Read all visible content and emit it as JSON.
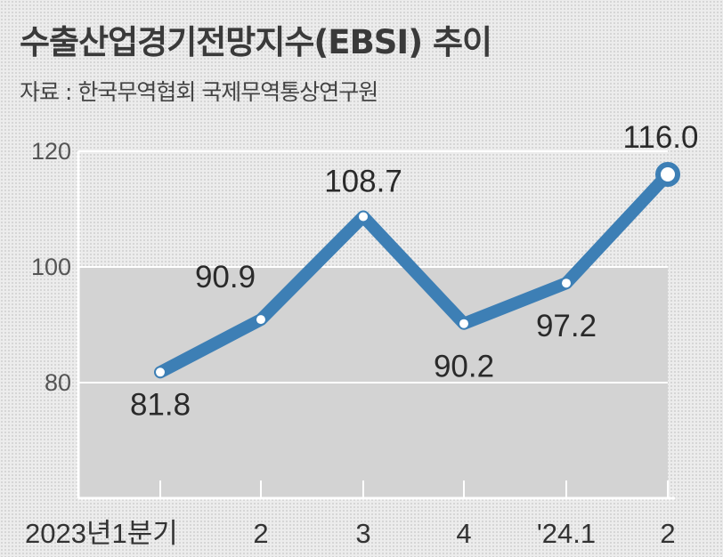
{
  "chart_data": {
    "type": "line",
    "title": "수출산업경기전망지수(EBSI) 추이",
    "subtitle": "자료 : 한국무역협회 국제무역통상연구원",
    "categories": [
      "2023년1분기",
      "2",
      "3",
      "4",
      "'24.1",
      "2"
    ],
    "series": [
      {
        "values": [
          81.8,
          90.9,
          108.7,
          90.2,
          97.2,
          116.0
        ],
        "labels": [
          "81.8",
          "90.9",
          "108.7",
          "90.2",
          "97.2",
          "116.0"
        ]
      }
    ],
    "yticks": [
      "120",
      "100",
      "80"
    ],
    "ylim": [
      60,
      120
    ],
    "baseline": 100,
    "colors": {
      "line": "#3d7fb5",
      "marker_fill": "#ffffff",
      "band": "#d3d3d3",
      "axis": "#ffffff"
    }
  }
}
